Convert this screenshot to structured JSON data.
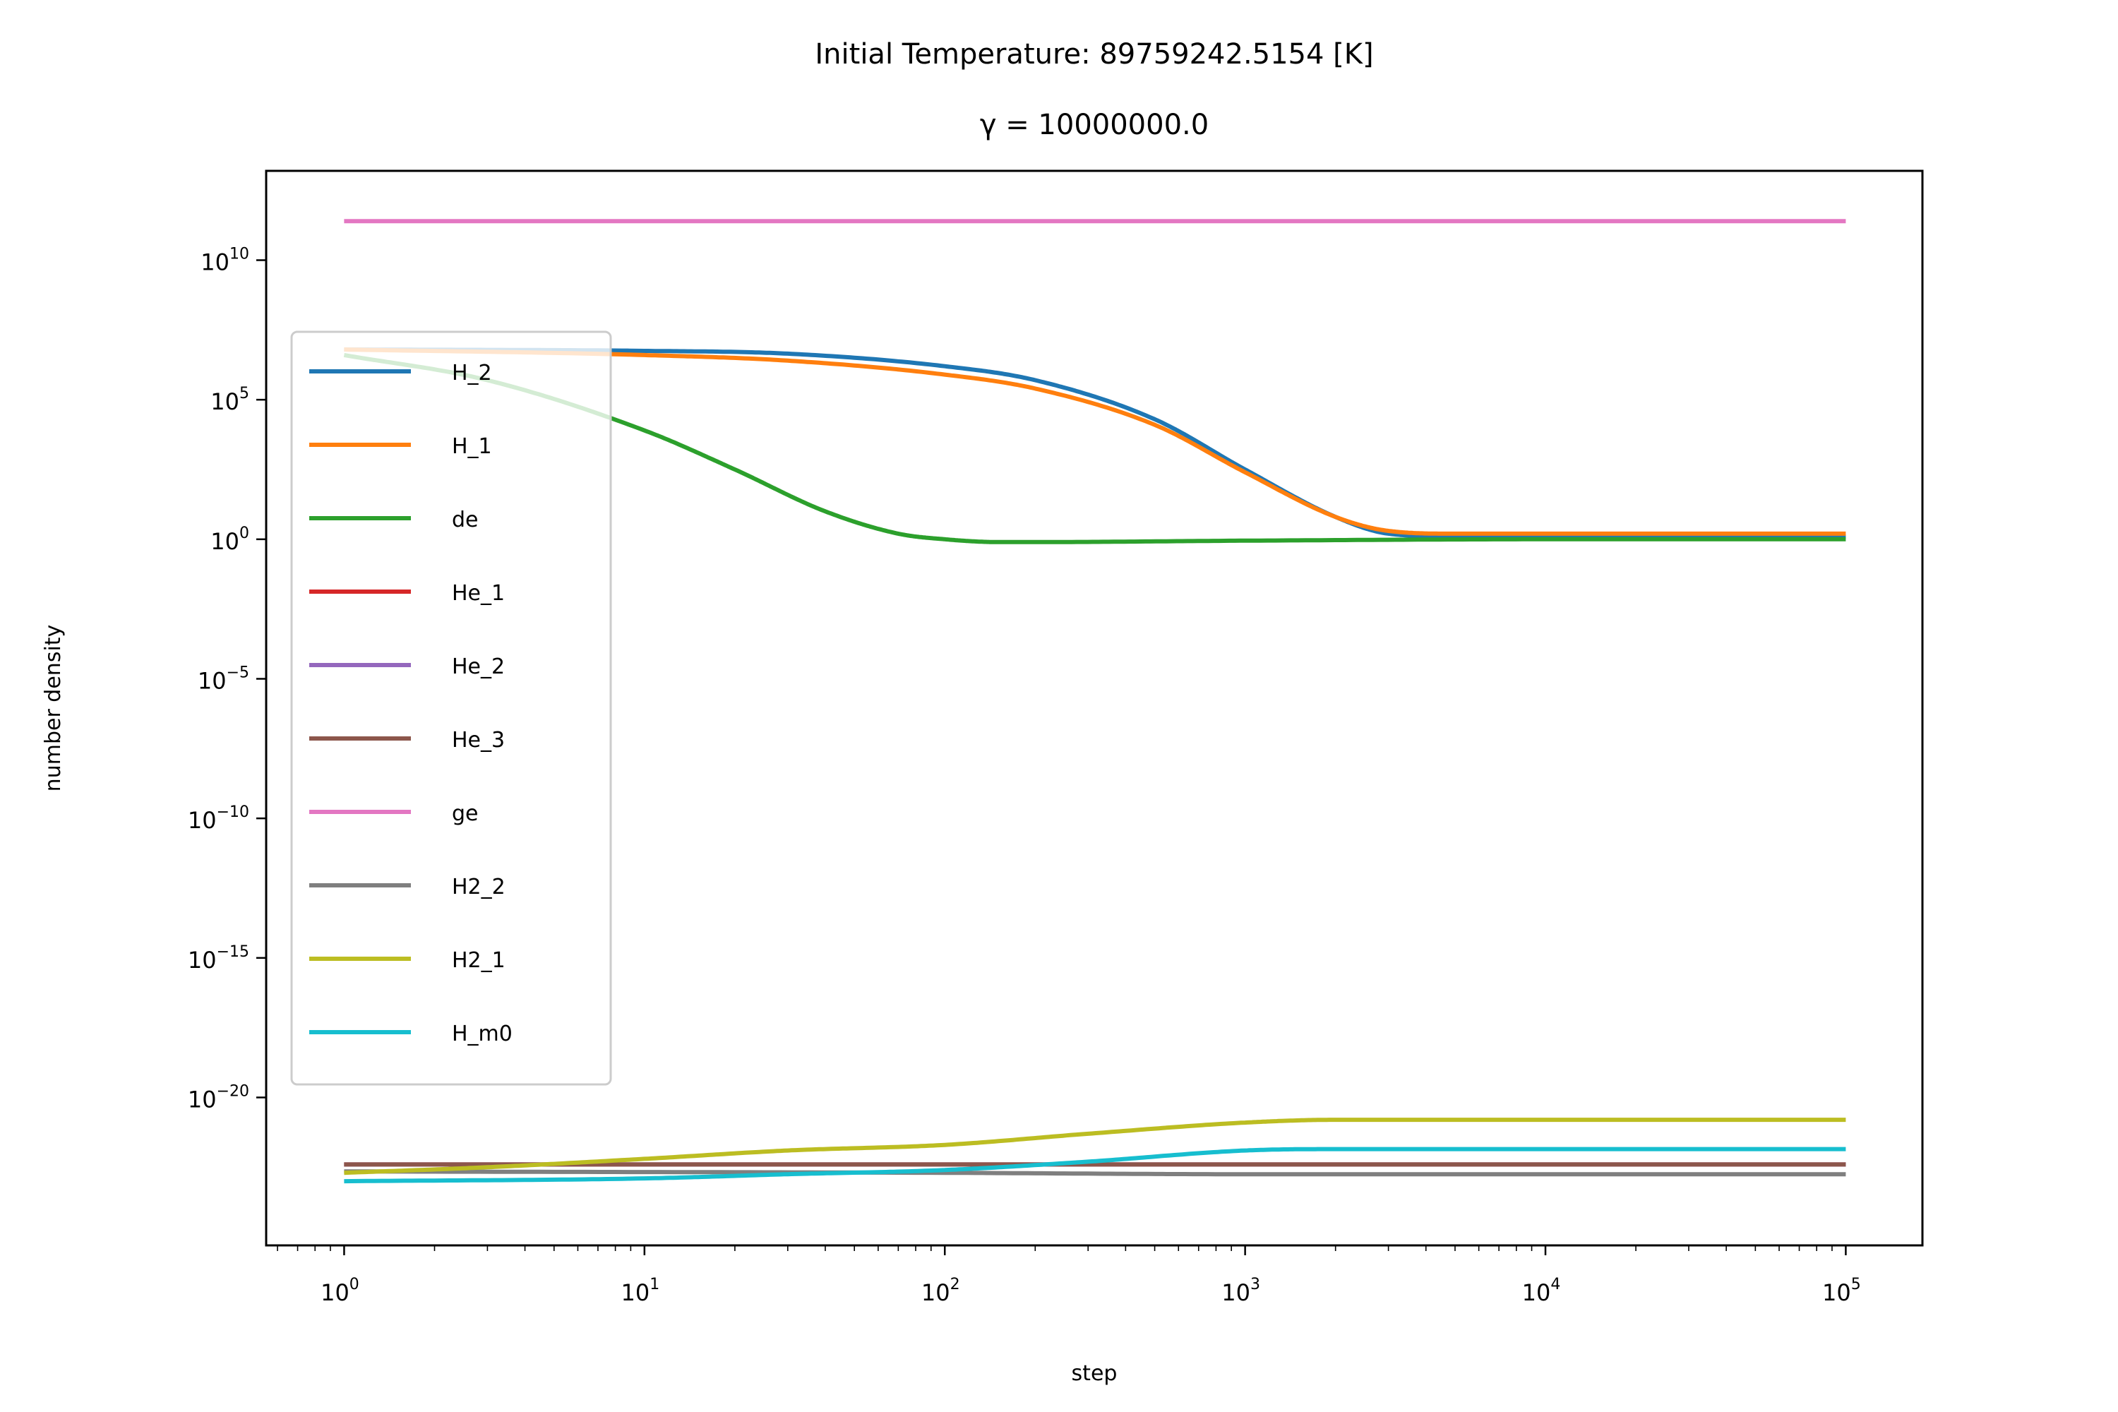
{
  "chart_data": {
    "type": "line",
    "title": "Initial Temperature: 89759242.5154 [K]",
    "subtitle": "γ = 10000000.0",
    "xlabel": "step",
    "ylabel": "number density",
    "xscale": "log",
    "yscale": "log",
    "xlim": [
      0.55,
      180000
    ],
    "ylim_log10": [
      -25.3,
      13.2
    ],
    "x_ticks": [
      {
        "base": "10",
        "exp": "0",
        "value": 1
      },
      {
        "base": "10",
        "exp": "1",
        "value": 10
      },
      {
        "base": "10",
        "exp": "2",
        "value": 100
      },
      {
        "base": "10",
        "exp": "3",
        "value": 1000
      },
      {
        "base": "10",
        "exp": "4",
        "value": 10000
      },
      {
        "base": "10",
        "exp": "5",
        "value": 100000
      }
    ],
    "y_ticks": [
      {
        "base": "10",
        "exp": "10",
        "value_log10": 10
      },
      {
        "base": "10",
        "exp": "5",
        "value_log10": 5
      },
      {
        "base": "10",
        "exp": "0",
        "value_log10": 0
      },
      {
        "base": "10",
        "exp": "−5",
        "value_log10": -5
      },
      {
        "base": "10",
        "exp": "−10",
        "value_log10": -10
      },
      {
        "base": "10",
        "exp": "−15",
        "value_log10": -15
      },
      {
        "base": "10",
        "exp": "−20",
        "value_log10": -20
      }
    ],
    "legend_position": "upper-left",
    "series": [
      {
        "name": "H_2",
        "color": "#1f77b4",
        "x": [
          1,
          10,
          30,
          100,
          200,
          500,
          1000,
          2000,
          3000,
          5000,
          10000,
          100000
        ],
        "log10_y": [
          6.8,
          6.75,
          6.65,
          6.2,
          5.7,
          4.3,
          2.5,
          0.8,
          0.2,
          0.1,
          0.1,
          0.1
        ]
      },
      {
        "name": "H_1",
        "color": "#ff7f0e",
        "x": [
          1,
          10,
          30,
          100,
          200,
          500,
          1000,
          2000,
          3000,
          5000,
          10000,
          100000
        ],
        "log10_y": [
          6.8,
          6.6,
          6.4,
          5.9,
          5.4,
          4.1,
          2.4,
          0.8,
          0.3,
          0.2,
          0.2,
          0.2
        ]
      },
      {
        "name": "de",
        "color": "#2ca02c",
        "x": [
          1,
          3,
          10,
          20,
          40,
          70,
          100,
          150,
          200,
          1000,
          10000,
          100000
        ],
        "log10_y": [
          6.6,
          5.7,
          3.9,
          2.5,
          1.0,
          0.2,
          0.0,
          -0.1,
          -0.1,
          -0.05,
          0.0,
          0.0
        ]
      },
      {
        "name": "He_1",
        "color": "#d62728",
        "x": [
          1,
          100000
        ],
        "log10_y": [
          -22.4,
          -22.4
        ]
      },
      {
        "name": "He_2",
        "color": "#9467bd",
        "x": [
          1,
          100000
        ],
        "log10_y": [
          -22.4,
          -22.4
        ]
      },
      {
        "name": "He_3",
        "color": "#8c564b",
        "x": [
          1,
          100000
        ],
        "log10_y": [
          -22.4,
          -22.4
        ]
      },
      {
        "name": "ge",
        "color": "#e377c2",
        "x": [
          1,
          100000
        ],
        "log10_y": [
          11.4,
          11.4
        ]
      },
      {
        "name": "H2_2",
        "color": "#7f7f7f",
        "x": [
          1,
          100,
          1000,
          100000
        ],
        "log10_y": [
          -22.65,
          -22.7,
          -22.75,
          -22.75
        ]
      },
      {
        "name": "H2_1",
        "color": "#bcbd22",
        "x": [
          1,
          3,
          10,
          30,
          100,
          300,
          1000,
          2000,
          5000,
          100000
        ],
        "log10_y": [
          -22.7,
          -22.5,
          -22.2,
          -21.9,
          -21.7,
          -21.3,
          -20.9,
          -20.8,
          -20.8,
          -20.8
        ]
      },
      {
        "name": "H_m0",
        "color": "#17becf",
        "x": [
          1,
          10,
          30,
          100,
          300,
          1000,
          2000,
          100000
        ],
        "log10_y": [
          -23.0,
          -22.9,
          -22.75,
          -22.6,
          -22.3,
          -21.9,
          -21.85,
          -21.85
        ]
      }
    ]
  }
}
